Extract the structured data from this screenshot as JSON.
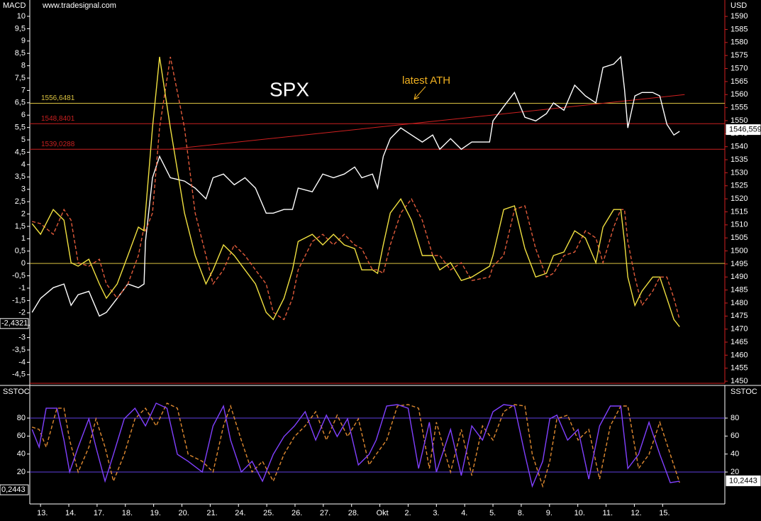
{
  "chart_data": [
    {
      "type": "line",
      "source": "www.tradesignal.com",
      "y_label": "MACD",
      "y2_label": "USD",
      "xlim": [
        -0.38,
        24.2
      ],
      "ylim": [
        -4.85,
        10.66
      ],
      "yticks": [
        10,
        {
          "value": 9.5,
          "label": "9,5"
        },
        9,
        {
          "value": 8.5,
          "label": "8,5"
        },
        8,
        {
          "value": 7.5,
          "label": "7,5"
        },
        7,
        {
          "value": 6.5,
          "label": "6,5"
        },
        6,
        {
          "value": 5.5,
          "label": "5,5"
        },
        5,
        {
          "value": 4.5,
          "label": "4,5"
        },
        4,
        {
          "value": 3.5,
          "label": "3,5"
        },
        3,
        {
          "value": 2.5,
          "label": "2,5"
        },
        2,
        {
          "value": 1.5,
          "label": "1,5"
        },
        1,
        {
          "value": 0.5,
          "label": "0,5"
        },
        0,
        {
          "value": -0.5,
          "label": "-0,5"
        },
        -1,
        {
          "value": -1.5,
          "label": "-1,5"
        },
        -2,
        {
          "value": -2.5,
          "label": "-2,5"
        },
        -3,
        {
          "value": -3.5,
          "label": "-3,5"
        },
        -4,
        {
          "value": -4.5,
          "label": "-4,5"
        }
      ],
      "y2lim": [
        1449.2,
        1596.3
      ],
      "y2ticks": [
        1590,
        1585,
        1580,
        1575,
        1570,
        1565,
        1560,
        1555,
        1550,
        1545,
        1540,
        1535,
        1530,
        1525,
        1520,
        1515,
        1510,
        1505,
        1500,
        1495,
        1490,
        1485,
        1480,
        1475,
        1470,
        1465,
        1460,
        1455,
        1450
      ],
      "x": [
        -0.3,
        0,
        0.45,
        0.83,
        1.08,
        1.33,
        1.71,
        2.08,
        2.33,
        2.71,
        3.09,
        3.46,
        3.66,
        3.71,
        3.96,
        4.21,
        4.59,
        5.09,
        5.47,
        5.85,
        6.1,
        6.47,
        6.85,
        7.23,
        7.6,
        7.98,
        8.23,
        8.61,
        8.91,
        9.11,
        9.61,
        9.98,
        10.36,
        10.74,
        11.11,
        11.36,
        11.74,
        11.92,
        12.12,
        12.37,
        12.74,
        13.12,
        13.5,
        13.87,
        14.12,
        14.5,
        14.88,
        15.25,
        15.88,
        16.0,
        16.38,
        16.76,
        17.13,
        17.51,
        17.89,
        18.14,
        18.51,
        18.89,
        19.27,
        19.64,
        19.89,
        20.27,
        20.52,
        20.65,
        20.77,
        21.02,
        21.27,
        21.65,
        21.9,
        22.15,
        22.4,
        22.6
      ],
      "series": [
        {
          "color": "#ffffff",
          "axis": "y2",
          "values": [
            1476.4,
            1481.8,
            1485.9,
            1487.3,
            1479.1,
            1483.2,
            1484.5,
            1475.0,
            1476.4,
            1481.8,
            1487.3,
            1485.9,
            1487.3,
            1503.6,
            1528.1,
            1536.3,
            1528.1,
            1526.8,
            1524.1,
            1520.0,
            1528.1,
            1529.5,
            1525.4,
            1528.1,
            1524.1,
            1514.5,
            1514.5,
            1515.9,
            1515.9,
            1524.1,
            1522.7,
            1529.5,
            1528.1,
            1529.5,
            1532.2,
            1528.1,
            1529.5,
            1524.1,
            1536.3,
            1543.1,
            1547.2,
            1544.5,
            1541.8,
            1544.5,
            1539.0,
            1543.1,
            1539.0,
            1541.8,
            1541.8,
            1549.9,
            1555.4,
            1560.8,
            1551.3,
            1549.9,
            1552.7,
            1556.8,
            1554.0,
            1563.6,
            1559.5,
            1556.8,
            1570.4,
            1571.7,
            1574.5,
            1562.2,
            1547.2,
            1559.5,
            1560.8,
            1560.8,
            1559.5,
            1548.6,
            1544.5,
            1545.9
          ]
        },
        {
          "color": "#e05a3a",
          "dashed": true,
          "values": [
            1.7,
            1.61,
            1.18,
            2.18,
            1.75,
            0.03,
            -0.11,
            0.17,
            -0.83,
            -1.41,
            -0.83,
            0.32,
            1.47,
            1.32,
            2.04,
            5.49,
            8.36,
            5.49,
            2.04,
            0.32,
            -0.83,
            -0.26,
            0.75,
            0.32,
            -0.26,
            -0.83,
            -1.98,
            -2.27,
            -1.41,
            -0.26,
            0.89,
            1.18,
            0.75,
            1.18,
            0.75,
            0.6,
            -0.26,
            -0.26,
            -0.4,
            0.75,
            2.04,
            2.61,
            1.75,
            0.32,
            0.32,
            -0.26,
            0.03,
            -0.69,
            -0.55,
            -0.11,
            0.32,
            2.18,
            2.33,
            0.6,
            -0.55,
            -0.4,
            0.32,
            0.46,
            1.32,
            1.03,
            0.03,
            1.47,
            2.18,
            2.18,
            0.89,
            -0.55,
            -1.7,
            -1.12,
            -0.55,
            -0.55,
            -1.41,
            -2.27
          ]
        },
        {
          "color": "#f0e040",
          "values": [
            1.61,
            1.18,
            2.18,
            1.75,
            0.03,
            -0.11,
            0.17,
            -0.83,
            -1.41,
            -0.83,
            0.32,
            1.47,
            1.32,
            2.04,
            5.49,
            8.36,
            5.49,
            2.04,
            0.32,
            -0.83,
            -0.26,
            0.75,
            0.32,
            -0.26,
            -0.83,
            -1.98,
            -2.27,
            -1.41,
            -0.26,
            0.89,
            1.18,
            0.75,
            1.18,
            0.75,
            0.6,
            -0.26,
            -0.26,
            -0.4,
            0.75,
            2.04,
            2.61,
            1.75,
            0.32,
            0.32,
            -0.26,
            0.03,
            -0.69,
            -0.55,
            -0.11,
            0.32,
            2.18,
            2.33,
            0.6,
            -0.55,
            -0.4,
            0.32,
            0.46,
            1.32,
            1.03,
            0.03,
            1.47,
            2.18,
            2.18,
            0.89,
            -0.55,
            -1.7,
            -1.12,
            -0.55,
            -0.55,
            -1.41,
            -2.27,
            -2.56
          ]
        }
      ],
      "levels": [
        {
          "value": 1556.6481,
          "label": "1556,6481",
          "color": "#d8c040"
        },
        {
          "value": 1548.8401,
          "label": "1548,8401",
          "color": "#c82020"
        },
        {
          "value": 1539.0288,
          "label": "1539,0288",
          "color": "#c82020"
        }
      ],
      "zero_line": {
        "value": 0,
        "color": "#d8c040"
      },
      "trendline": {
        "color": "#d02020",
        "x": [
          4.59,
          22.78
        ],
        "values": [
          1539.03,
          1560.0
        ]
      },
      "annotations": [
        {
          "text": "SPX"
        },
        {
          "text": "latest ATH",
          "color": "#f0b020"
        }
      ],
      "tag_left": {
        "value": -2.4321,
        "label": "-2,4321"
      },
      "tag_right": {
        "value": 1546.559,
        "label": "1546,559"
      }
    },
    {
      "type": "line",
      "y_label": "SSTOC",
      "xlim": [
        -0.38,
        24.2
      ],
      "ylim": [
        -15.5,
        116.3
      ],
      "yticks": [
        20,
        40,
        60,
        80
      ],
      "hlines": {
        "values": [
          80,
          20
        ],
        "color": "#6040e0"
      },
      "categories": [
        "13.",
        "14.",
        "17.",
        "18.",
        "19.",
        "20.",
        "21.",
        "24.",
        "25.",
        "26.",
        "27.",
        "28.",
        "Okt",
        "2.",
        "3.",
        "4.",
        "5.",
        "8.",
        "9.",
        "10.",
        "11.",
        "12.",
        "15."
      ],
      "x": [
        -0.3,
        -0.05,
        0.2,
        0.58,
        0.83,
        1.03,
        1.33,
        1.71,
        1.96,
        2.28,
        2.58,
        2.96,
        3.34,
        3.71,
        4.09,
        4.47,
        4.84,
        5.22,
        5.72,
        6.1,
        6.47,
        6.72,
        7.1,
        7.48,
        7.85,
        8.23,
        8.61,
        8.98,
        9.36,
        9.73,
        10.11,
        10.49,
        10.86,
        11.24,
        11.62,
        11.87,
        12.24,
        12.62,
        13.0,
        13.37,
        13.75,
        14.0,
        14.5,
        14.88,
        15.25,
        15.63,
        16.0,
        16.38,
        16.76,
        17.13,
        17.39,
        17.76,
        18.01,
        18.26,
        18.64,
        19.01,
        19.39,
        19.77,
        20.15,
        20.52,
        20.77,
        21.15,
        21.52,
        21.9,
        22.27,
        22.6
      ],
      "series": [
        {
          "color": "#e08a30",
          "dashed": true,
          "values": [
            70,
            67.4,
            47.6,
            91.0,
            91.0,
            55.5,
            20.0,
            47.6,
            79.2,
            47.6,
            9.8,
            39.7,
            79.2,
            91.0,
            71.3,
            96.6,
            91.0,
            39.7,
            31.9,
            20.0,
            71.3,
            93.4,
            55.5,
            20.0,
            31.9,
            9.8,
            39.7,
            59.5,
            71.3,
            87.1,
            55.5,
            83.2,
            59.5,
            79.2,
            27.9,
            39.7,
            55.5,
            93.4,
            95.0,
            91.0,
            24.0,
            75.3,
            20.0,
            67.4,
            16.1,
            71.3,
            55.5,
            87.1,
            95.0,
            93.4,
            39.7,
            4.2,
            31.9,
            79.2,
            83.2,
            55.5,
            67.4,
            12.1,
            71.3,
            93.4,
            93.4,
            24.0,
            39.7,
            75.3,
            39.7,
            8.2
          ]
        },
        {
          "color": "#8040ff",
          "values": [
            67.4,
            47.6,
            91.0,
            91.0,
            55.5,
            20.0,
            47.6,
            79.2,
            47.6,
            9.8,
            39.7,
            79.2,
            91.0,
            71.3,
            96.6,
            91.0,
            39.7,
            31.9,
            20.0,
            71.3,
            93.4,
            55.5,
            20.0,
            31.9,
            9.8,
            39.7,
            59.5,
            71.3,
            87.1,
            55.5,
            83.2,
            59.5,
            79.2,
            27.9,
            39.7,
            55.5,
            93.4,
            95.0,
            91.0,
            24.0,
            75.3,
            20.0,
            67.4,
            16.1,
            71.3,
            55.5,
            87.1,
            95.0,
            93.4,
            39.7,
            4.2,
            31.9,
            79.2,
            83.2,
            55.5,
            67.4,
            12.1,
            71.3,
            93.4,
            93.4,
            24.0,
            39.7,
            75.3,
            39.7,
            8.2,
            9.8
          ]
        }
      ],
      "tag_left": {
        "value": 0.2443,
        "label": "0,2443"
      },
      "tag_right": {
        "value": 10.2443,
        "label": "10,2443"
      }
    }
  ]
}
